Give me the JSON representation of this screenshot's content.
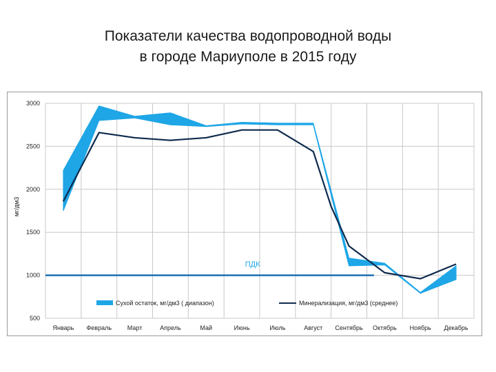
{
  "slide": {
    "title_line1": "Показатели качества водопроводной воды",
    "title_line2": "в городе Мариуполе в 2015 году"
  },
  "chart_data": {
    "type": "line",
    "title": "",
    "xlabel": "",
    "ylabel": "мг/дм3",
    "ylim": [
      500,
      3000
    ],
    "yticks": [
      500,
      1000,
      1500,
      2000,
      2500,
      3000
    ],
    "grid": true,
    "legend_position": "bottom",
    "categories": [
      "Январь",
      "Февраль",
      "Март",
      "Апрель",
      "Май",
      "Июнь",
      "Июль",
      "Август",
      "Сентябрь",
      "Октябрь",
      "Ноябрь",
      "Декабрь"
    ],
    "series": [
      {
        "name": "Сухой остаток, мг/дм3 ( диапазон)",
        "kind": "range",
        "color": "#1ea6e6",
        "x_index": [
          0,
          1,
          2,
          3,
          4,
          5,
          6,
          7,
          8,
          9,
          10,
          11
        ],
        "low": [
          1750,
          2800,
          2830,
          2750,
          2730,
          2760,
          2750,
          2750,
          1110,
          1120,
          790,
          950
        ],
        "high": [
          2220,
          2970,
          2850,
          2890,
          2740,
          2780,
          2770,
          2770,
          1200,
          1140,
          800,
          1110
        ]
      },
      {
        "name": "Минерализация, мг/дм3 (среднее)",
        "kind": "line",
        "color": "#0d2a4d",
        "points": [
          {
            "x": 0,
            "y": 1860
          },
          {
            "x": 1,
            "y": 2660
          },
          {
            "x": 2,
            "y": 2600
          },
          {
            "x": 3,
            "y": 2570
          },
          {
            "x": 4,
            "y": 2600
          },
          {
            "x": 5,
            "y": 2690
          },
          {
            "x": 6,
            "y": 2690
          },
          {
            "x": 7,
            "y": 2440
          },
          {
            "x": 7.5,
            "y": 1800
          },
          {
            "x": 8,
            "y": 1340
          },
          {
            "x": 9,
            "y": 1030
          },
          {
            "x": 10,
            "y": 960
          },
          {
            "x": 11,
            "y": 1130
          }
        ]
      },
      {
        "name": "ПДК",
        "kind": "reference",
        "color": "#1b6fb5",
        "y": 1000,
        "x_from": -0.5,
        "x_to": 8.7
      }
    ],
    "annotations": [
      {
        "text": "ПДК",
        "x": 5.3,
        "y": 1100
      }
    ]
  }
}
